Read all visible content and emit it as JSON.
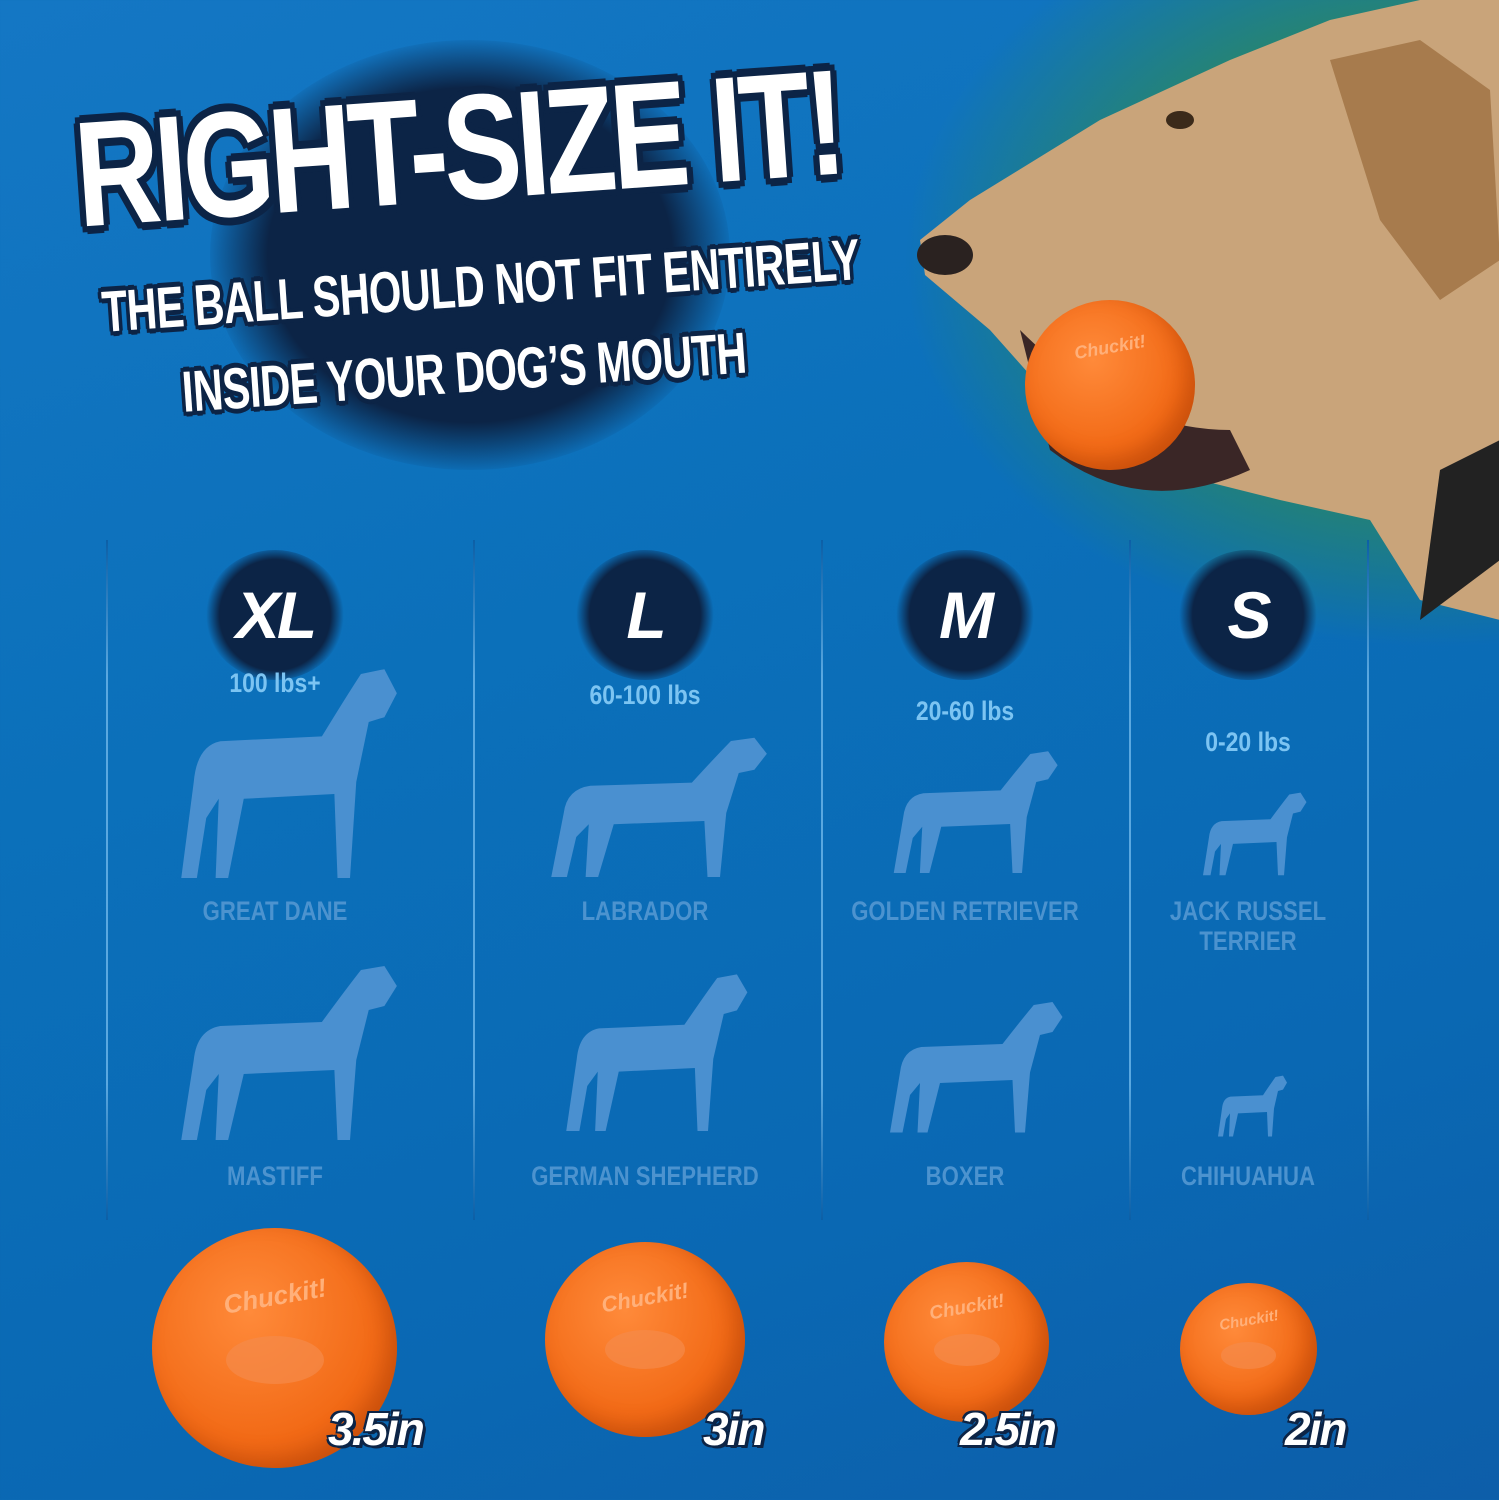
{
  "header": {
    "title": "RIGHT-SIZE IT!",
    "subtitle_line1": "THE BALL SHOULD NOT FIT ENTIRELY",
    "subtitle_line2": "INSIDE YOUR DOG’S MOUTH"
  },
  "ball_logo": "Chuckit!",
  "colors": {
    "background": "#0b70ba",
    "badge": "#0c2446",
    "ball": "#f26a16",
    "weight_text": "#7cc4f2",
    "breed_text": "#4c93cf"
  },
  "sizes": [
    {
      "label": "XL",
      "weight": "100 lbs+",
      "breeds": [
        "GREAT DANE",
        "MASTIFF"
      ],
      "ball_size": "3.5in"
    },
    {
      "label": "L",
      "weight": "60-100 lbs",
      "breeds": [
        "LABRADOR",
        "GERMAN SHEPHERD"
      ],
      "ball_size": "3in"
    },
    {
      "label": "M",
      "weight": "20-60 lbs",
      "breeds": [
        "GOLDEN RETRIEVER",
        "BOXER"
      ],
      "ball_size": "2.5in"
    },
    {
      "label": "S",
      "weight": "0-20 lbs",
      "breeds": [
        "JACK RUSSEL TERRIER",
        "CHIHUAHUA"
      ],
      "ball_size": "2in"
    }
  ]
}
